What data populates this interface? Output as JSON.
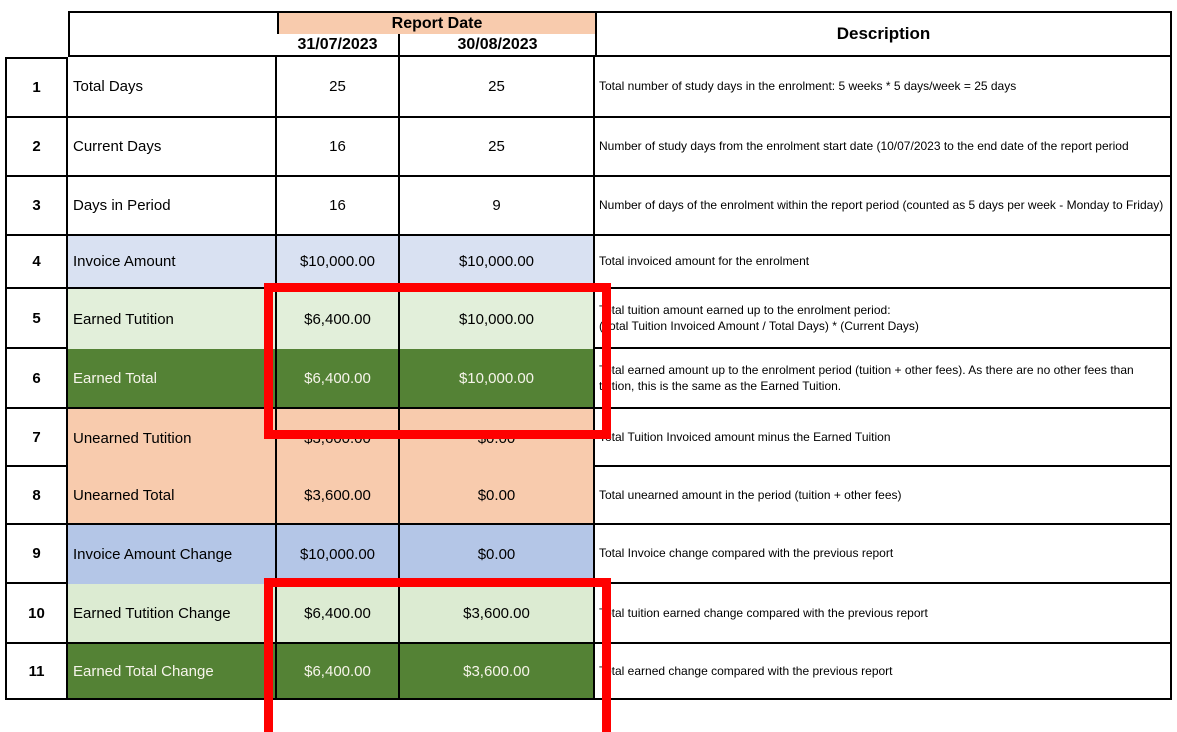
{
  "header": {
    "report_date_label": "Report Date",
    "dates": [
      "31/07/2023",
      "30/08/2023"
    ],
    "description_label": "Description"
  },
  "colors": {
    "header_peach": "#F8CBAD",
    "invoice_blue_light": "#D9E1F2",
    "invoice_blue": "#B4C6E7",
    "earned_green_light": "#E2EFDA",
    "earned_green_dark": "#548235",
    "unearned_peach": "#F8CBAD",
    "highlight_red": "#FF0000"
  },
  "rows": [
    {
      "num": "1",
      "label": "Total Days",
      "v1": "25",
      "v2": "25",
      "variant": "plain",
      "merge_down": false,
      "desc": "Total number of study days in the enrolment: 5 weeks * 5 days/week = 25 days"
    },
    {
      "num": "2",
      "label": "Current Days",
      "v1": "16",
      "v2": "25",
      "variant": "plain",
      "merge_down": false,
      "desc": "Number of study days from the enrolment start date (10/07/2023 to the end date of the report period"
    },
    {
      "num": "3",
      "label": "Days in Period",
      "v1": "16",
      "v2": "9",
      "variant": "plain",
      "merge_down": false,
      "desc": "Number of days of the enrolment within the report period (counted as 5 days per week - Monday to Friday)"
    },
    {
      "num": "4",
      "label": "Invoice Amount",
      "v1": "$10,000.00",
      "v2": "$10,000.00",
      "variant": "blue-light",
      "merge_down": false,
      "desc": "Total invoiced amount for the enrolment"
    },
    {
      "num": "5",
      "label": "Earned Tutition",
      "v1": "$6,400.00",
      "v2": "$10,000.00",
      "variant": "green-light",
      "merge_down": true,
      "desc": "Total tuition amount earned up to the enrolment period:\n(Total Tuition Invoiced Amount / Total Days) * (Current Days)"
    },
    {
      "num": "6",
      "label": "Earned Total",
      "v1": "$6,400.00",
      "v2": "$10,000.00",
      "variant": "green-dark",
      "merge_down": false,
      "desc": "Total earned amount up to the enrolment period (tuition + other fees). As there are no other fees than tuition, this is the same as the Earned Tuition."
    },
    {
      "num": "7",
      "label": "Unearned Tutition",
      "v1": "$3,600.00",
      "v2": "$0.00",
      "variant": "peach",
      "merge_down": true,
      "desc": "Total Tuition Invoiced amount minus the Earned Tuition"
    },
    {
      "num": "8",
      "label": "Unearned Total",
      "v1": "$3,600.00",
      "v2": "$0.00",
      "variant": "peach",
      "merge_down": false,
      "desc": "Total unearned amount in the period (tuition + other fees)"
    },
    {
      "num": "9",
      "label": "Invoice Amount Change",
      "v1": "$10,000.00",
      "v2": "$0.00",
      "variant": "blue",
      "merge_down": true,
      "desc": "Total Invoice change compared with the previous report"
    },
    {
      "num": "10",
      "label": "Earned Tutition Change",
      "v1": "$6,400.00",
      "v2": "$3,600.00",
      "variant": "green-light2",
      "merge_down": false,
      "desc": "Total tuition earned change compared with the previous report"
    },
    {
      "num": "11",
      "label": "Earned Total Change",
      "v1": "$6,400.00",
      "v2": "$3,600.00",
      "variant": "green-dark",
      "merge_down": false,
      "desc": "Total earned change compared with the previous report"
    }
  ]
}
